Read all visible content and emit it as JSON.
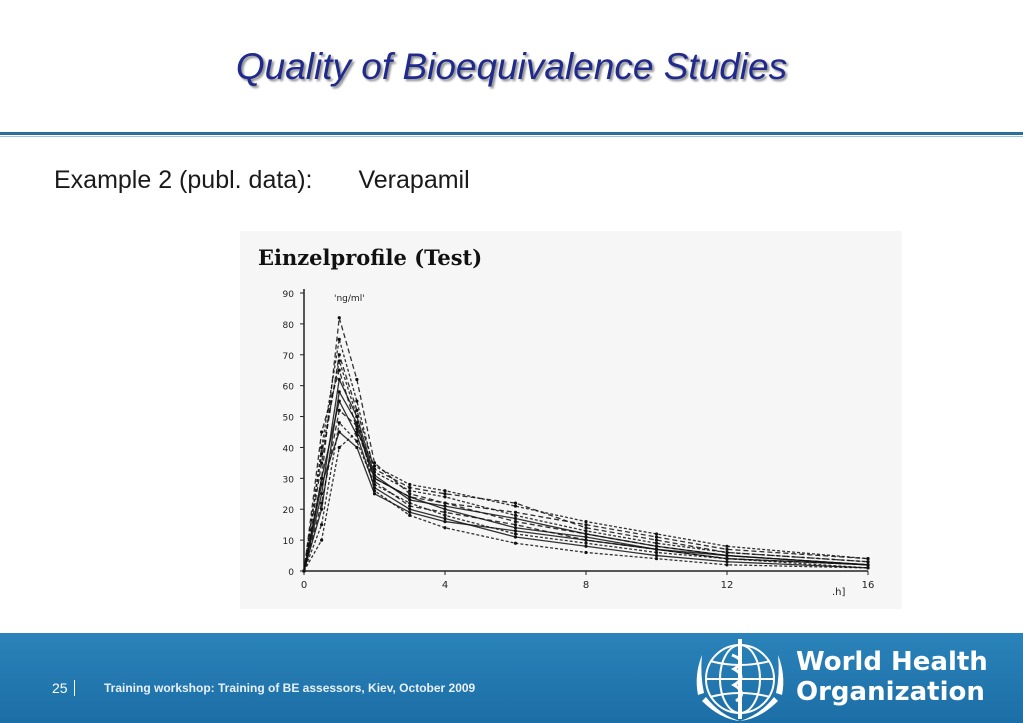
{
  "slide": {
    "title": "Quality of Bioequivalence Studies",
    "subtitle_left": "Example 2 (publ. data):",
    "subtitle_right": "Verapamil"
  },
  "figure": {
    "heading": "Einzelprofile (Test)",
    "y_unit": "ng/ml",
    "x_unit": "h"
  },
  "chart_data": {
    "type": "line",
    "title": "Einzelprofile (Test)",
    "xlabel": "h",
    "ylabel": "ng/ml",
    "xlim": [
      0,
      16
    ],
    "ylim": [
      0,
      90
    ],
    "x_ticks": [
      "0",
      "4",
      "8",
      "12",
      "16"
    ],
    "y_ticks": [
      "0",
      "10",
      "20",
      "30",
      "40",
      "50",
      "60",
      "70",
      "80",
      "90"
    ],
    "x": [
      0,
      0.5,
      1,
      1.5,
      2,
      3,
      4,
      6,
      8,
      10,
      12,
      16
    ],
    "series": [
      {
        "values": [
          0,
          30,
          82,
          62,
          35,
          25,
          22,
          16,
          12,
          8,
          5,
          2
        ]
      },
      {
        "values": [
          0,
          40,
          75,
          55,
          32,
          26,
          24,
          18,
          13,
          9,
          6,
          3
        ]
      },
      {
        "values": [
          0,
          20,
          58,
          48,
          30,
          24,
          20,
          14,
          11,
          7,
          4,
          2
        ]
      },
      {
        "values": [
          0,
          35,
          70,
          52,
          33,
          27,
          25,
          22,
          14,
          10,
          6,
          3
        ]
      },
      {
        "values": [
          0,
          15,
          48,
          42,
          28,
          22,
          18,
          12,
          9,
          6,
          4,
          1
        ]
      },
      {
        "values": [
          0,
          25,
          62,
          50,
          31,
          23,
          21,
          17,
          12,
          8,
          5,
          2
        ]
      },
      {
        "values": [
          0,
          45,
          65,
          46,
          30,
          24,
          22,
          19,
          15,
          11,
          7,
          4
        ]
      },
      {
        "values": [
          0,
          10,
          40,
          45,
          34,
          28,
          26,
          21,
          16,
          12,
          8,
          4
        ]
      },
      {
        "values": [
          0,
          30,
          55,
          44,
          27,
          20,
          17,
          11,
          8,
          5,
          3,
          1
        ]
      },
      {
        "values": [
          0,
          22,
          52,
          47,
          29,
          21,
          19,
          15,
          10,
          7,
          4,
          2
        ]
      },
      {
        "values": [
          0,
          38,
          68,
          50,
          26,
          18,
          14,
          9,
          6,
          4,
          2,
          1
        ]
      },
      {
        "values": [
          0,
          28,
          45,
          40,
          25,
          19,
          16,
          13,
          10,
          7,
          5,
          2
        ]
      }
    ],
    "grid": false,
    "legend": "none"
  },
  "footer": {
    "page_number": "25",
    "text": "Training workshop: Training of BE assessors, Kiev, October 2009",
    "org_line1": "World Health",
    "org_line2": "Organization"
  }
}
